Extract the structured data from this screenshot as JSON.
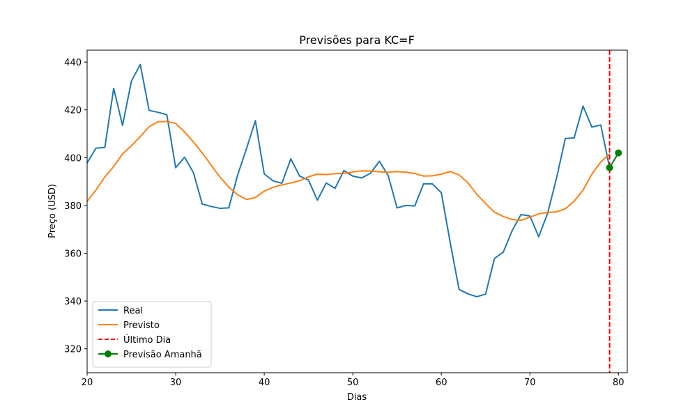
{
  "chart_data": {
    "type": "line",
    "title": "Previsões para KC=F",
    "xlabel": "Dias",
    "ylabel": "Preço (USD)",
    "xlim": [
      20,
      81
    ],
    "ylim": [
      310,
      445
    ],
    "xticks": [
      20,
      30,
      40,
      50,
      60,
      70,
      80
    ],
    "yticks": [
      320,
      340,
      360,
      380,
      400,
      420,
      440
    ],
    "legend_position": "lower-left",
    "series": [
      {
        "name": "Real",
        "color": "#1f77b4",
        "style": "solid",
        "x": [
          20,
          21,
          22,
          23,
          24,
          25,
          26,
          27,
          28,
          29,
          30,
          31,
          32,
          33,
          34,
          35,
          36,
          37,
          38,
          39,
          40,
          41,
          42,
          43,
          44,
          45,
          46,
          47,
          48,
          49,
          50,
          51,
          52,
          53,
          54,
          55,
          56,
          57,
          58,
          59,
          60,
          61,
          62,
          63,
          64,
          65,
          66,
          67,
          68,
          69,
          70,
          71,
          72,
          73,
          74,
          75,
          76,
          77,
          78,
          79
        ],
        "y": [
          397.8,
          404,
          404.3,
          429,
          413.5,
          432,
          439,
          419.8,
          419,
          418,
          395.8,
          400.2,
          393.8,
          380.6,
          379.6,
          378.8,
          379,
          392.8,
          403.8,
          415.5,
          393.2,
          390.3,
          389.3,
          399.5,
          392.3,
          390.6,
          382.2,
          389.4,
          387.2,
          394.6,
          392.3,
          391.5,
          393.5,
          398.5,
          392.5,
          379,
          380,
          379.8,
          389.1,
          389,
          385.3,
          364.5,
          344.9,
          343,
          341.8,
          342.9,
          357.8,
          360.5,
          369.5,
          376.2,
          375.6,
          366.9,
          376.7,
          391.3,
          408,
          408.3,
          421.6,
          412.8,
          413.7,
          395.8
        ]
      },
      {
        "name": "Previsto",
        "color": "#ff7f0e",
        "style": "solid",
        "x": [
          20,
          21,
          22,
          23,
          24,
          25,
          26,
          27,
          28,
          29,
          30,
          31,
          32,
          33,
          34,
          35,
          36,
          37,
          38,
          39,
          40,
          41,
          42,
          43,
          44,
          45,
          46,
          47,
          48,
          49,
          50,
          51,
          52,
          53,
          54,
          55,
          56,
          57,
          58,
          59,
          60,
          61,
          62,
          63,
          64,
          65,
          66,
          67,
          68,
          69,
          70,
          71,
          72,
          73,
          74,
          75,
          76,
          77,
          78,
          79
        ],
        "y": [
          381.7,
          386.5,
          391.9,
          396.3,
          401.6,
          405,
          408.8,
          413,
          415,
          415.2,
          414.3,
          410.8,
          406.6,
          402,
          396.9,
          391.9,
          387.7,
          384.5,
          382.5,
          383.3,
          386,
          387.6,
          388.6,
          389.4,
          390.4,
          392,
          393.1,
          392.9,
          393.3,
          393.4,
          394,
          394.5,
          394.4,
          394.1,
          393.9,
          394.2,
          393.9,
          393.4,
          392.3,
          392.4,
          393.1,
          394.2,
          392.8,
          389.5,
          384.7,
          380.8,
          377.2,
          375.4,
          374.1,
          373.8,
          375.1,
          376.5,
          377.1,
          377.3,
          378.6,
          381.8,
          386.4,
          393.1,
          398.2,
          401.6
        ]
      },
      {
        "name": "Último Dia",
        "color": "#ff0000",
        "style": "dashed",
        "vline_x": 79
      },
      {
        "name": "Previsão Amanhã",
        "color": "#008000",
        "style": "solid",
        "marker": "circle",
        "x": [
          79,
          80
        ],
        "y": [
          395.8,
          402
        ]
      }
    ]
  }
}
